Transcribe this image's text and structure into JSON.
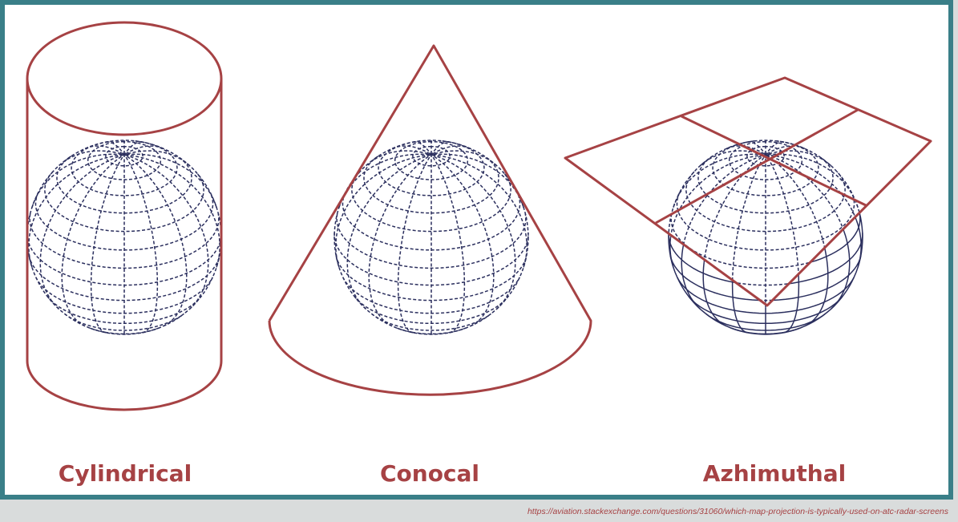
{
  "labels": {
    "cylindrical": "Cylindrical",
    "conical": "Conocal",
    "azimuthal": "Azhimuthal"
  },
  "source_url": "https://aviation.stackexchange.com/questions/31060/which-map-projection-is-typically-used-on-atc-radar-screens",
  "colors": {
    "projection_surface": "#a64244",
    "globe_grid": "#2b2f5e",
    "frame_border": "#3a7f88",
    "background": "#ffffff"
  }
}
